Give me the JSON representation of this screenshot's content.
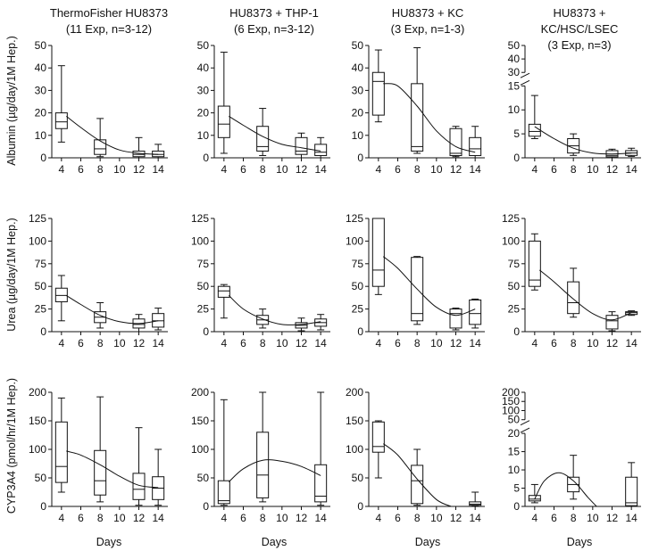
{
  "figure": {
    "column_titles": [
      [
        "ThermoFisher HU8373",
        "(11 Exp, n=3-12)"
      ],
      [
        "HU8373 + THP-1",
        "(6 Exp, n=3-12)"
      ],
      [
        "HU8373 + KC",
        "(3 Exp, n=1-3)"
      ],
      [
        "HU8373 +",
        "KC/HSC/LSEC",
        "(3 Exp, n=3)"
      ]
    ],
    "row_ylabels": [
      "Albumin (µg/day/1M Hep.)",
      "Urea (µg/day/1M Hep.)",
      "CYP3A4 (pmol/hr/1M Hep.)"
    ],
    "xlabel": "Days",
    "x_ticks": [
      4,
      6,
      8,
      10,
      12,
      14
    ]
  },
  "chart_data": [
    {
      "type": "box",
      "id": "albumin-hu8373",
      "row": 0,
      "col": 0,
      "title": "ThermoFisher HU8373 (11 Exp, n=3-12)",
      "ylabel": "Albumin (µg/day/1M Hep.)",
      "xlabel": "",
      "ylim": [
        0,
        50
      ],
      "yticks": [
        0,
        10,
        20,
        30,
        40,
        50
      ],
      "x_ticks": [
        4,
        6,
        8,
        10,
        12,
        14
      ],
      "boxes": [
        {
          "day": 4,
          "min": 7,
          "q1": 13,
          "median": 16,
          "q3": 20,
          "max": 41
        },
        {
          "day": 8,
          "min": 0.5,
          "q1": 1.5,
          "median": 4,
          "q3": 8,
          "max": 17.5
        },
        {
          "day": 12,
          "min": 0,
          "q1": 0.5,
          "median": 1.5,
          "q3": 3,
          "max": 9
        },
        {
          "day": 14,
          "min": 0,
          "q1": 0.5,
          "median": 1.5,
          "q3": 3,
          "max": 6
        }
      ],
      "trend": [
        [
          4.5,
          18.5
        ],
        [
          6,
          13.5
        ],
        [
          8,
          7.5
        ],
        [
          10,
          3.5
        ],
        [
          12,
          2
        ],
        [
          14,
          1.5
        ]
      ]
    },
    {
      "type": "box",
      "id": "albumin-thp1",
      "row": 0,
      "col": 1,
      "title": "HU8373 + THP-1 (6 Exp, n=3-12)",
      "ylabel": "",
      "xlabel": "",
      "ylim": [
        0,
        50
      ],
      "yticks": [
        0,
        10,
        20,
        30,
        40,
        50
      ],
      "x_ticks": [
        4,
        6,
        8,
        10,
        12,
        14
      ],
      "boxes": [
        {
          "day": 4,
          "min": 2,
          "q1": 9,
          "median": 15,
          "q3": 23,
          "max": 47
        },
        {
          "day": 8,
          "min": 1,
          "q1": 3,
          "median": 5,
          "q3": 14,
          "max": 22
        },
        {
          "day": 12,
          "min": 0,
          "q1": 1.5,
          "median": 3,
          "q3": 9,
          "max": 11
        },
        {
          "day": 14,
          "min": 0,
          "q1": 1,
          "median": 2.5,
          "q3": 6,
          "max": 9
        }
      ],
      "trend": [
        [
          4.5,
          18.5
        ],
        [
          6,
          14.5
        ],
        [
          8,
          9.5
        ],
        [
          10,
          6
        ],
        [
          12,
          4.5
        ],
        [
          14,
          3
        ]
      ]
    },
    {
      "type": "box",
      "id": "albumin-kc",
      "row": 0,
      "col": 2,
      "title": "HU8373 + KC (3 Exp, n=1-3)",
      "ylabel": "",
      "xlabel": "",
      "ylim": [
        0,
        50
      ],
      "yticks": [
        0,
        10,
        20,
        30,
        40,
        50
      ],
      "x_ticks": [
        4,
        6,
        8,
        10,
        12,
        14
      ],
      "boxes": [
        {
          "day": 4,
          "min": 16,
          "q1": 19,
          "median": 34,
          "q3": 38,
          "max": 48
        },
        {
          "day": 8,
          "min": 2,
          "q1": 3,
          "median": 5,
          "q3": 33,
          "max": 49
        },
        {
          "day": 12,
          "min": 0.5,
          "q1": 1,
          "median": 2,
          "q3": 13,
          "max": 14
        },
        {
          "day": 14,
          "min": 0,
          "q1": 1,
          "median": 4,
          "q3": 9,
          "max": 14
        }
      ],
      "trend": [
        [
          4.5,
          33
        ],
        [
          6,
          32
        ],
        [
          8,
          23
        ],
        [
          10,
          12
        ],
        [
          12,
          5
        ],
        [
          14,
          2.5
        ]
      ]
    },
    {
      "type": "box",
      "id": "albumin-kc-hsc-lsec",
      "row": 0,
      "col": 3,
      "title": "HU8373 + KC/HSC/LSEC (3 Exp, n=3)",
      "ylabel": "",
      "xlabel": "",
      "ylim": [
        0,
        50
      ],
      "yticks": [
        0,
        5,
        10,
        15,
        30,
        40,
        50
      ],
      "axis_break": [
        15,
        30
      ],
      "x_ticks": [
        4,
        6,
        8,
        10,
        12,
        14
      ],
      "boxes": [
        {
          "day": 4,
          "min": 4,
          "q1": 4.5,
          "median": 5.5,
          "q3": 7,
          "max": 13
        },
        {
          "day": 8,
          "min": 0.5,
          "q1": 1,
          "median": 2.5,
          "q3": 4,
          "max": 5
        },
        {
          "day": 12,
          "min": 0,
          "q1": 0.2,
          "median": 0.5,
          "q3": 1.5,
          "max": 1.8
        },
        {
          "day": 14,
          "min": 0.3,
          "q1": 0.5,
          "median": 1,
          "q3": 1.5,
          "max": 2
        }
      ],
      "trend": [
        [
          4,
          6.5
        ],
        [
          6,
          4
        ],
        [
          8,
          2
        ],
        [
          10,
          1
        ],
        [
          12,
          0.8
        ],
        [
          14,
          1
        ]
      ]
    },
    {
      "type": "box",
      "id": "urea-hu8373",
      "row": 1,
      "col": 0,
      "title": "",
      "ylabel": "Urea (µg/day/1M Hep.)",
      "xlabel": "",
      "ylim": [
        0,
        125
      ],
      "yticks": [
        0,
        25,
        50,
        75,
        100,
        125
      ],
      "x_ticks": [
        4,
        6,
        8,
        10,
        12,
        14
      ],
      "boxes": [
        {
          "day": 4,
          "min": 12,
          "q1": 33,
          "median": 40,
          "q3": 48,
          "max": 62
        },
        {
          "day": 8,
          "min": 4,
          "q1": 10,
          "median": 16,
          "q3": 22,
          "max": 32
        },
        {
          "day": 12,
          "min": 0,
          "q1": 4,
          "median": 8,
          "q3": 14,
          "max": 19
        },
        {
          "day": 14,
          "min": 2,
          "q1": 5,
          "median": 12,
          "q3": 20,
          "max": 26
        }
      ],
      "trend": [
        [
          4.5,
          40
        ],
        [
          6,
          30
        ],
        [
          8,
          18
        ],
        [
          10,
          11
        ],
        [
          12,
          9
        ],
        [
          14,
          12
        ]
      ]
    },
    {
      "type": "box",
      "id": "urea-thp1",
      "row": 1,
      "col": 1,
      "title": "",
      "ylabel": "",
      "xlabel": "",
      "ylim": [
        0,
        125
      ],
      "yticks": [
        0,
        25,
        50,
        75,
        100,
        125
      ],
      "x_ticks": [
        4,
        6,
        8,
        10,
        12,
        14
      ],
      "boxes": [
        {
          "day": 4,
          "min": 15,
          "q1": 38,
          "median": 45,
          "q3": 50,
          "max": 52
        },
        {
          "day": 8,
          "min": 4,
          "q1": 8,
          "median": 13,
          "q3": 18,
          "max": 25
        },
        {
          "day": 12,
          "min": 1,
          "q1": 4,
          "median": 7,
          "q3": 10,
          "max": 15
        },
        {
          "day": 14,
          "min": 2,
          "q1": 6,
          "median": 10,
          "q3": 14,
          "max": 19
        }
      ],
      "trend": [
        [
          4.5,
          40
        ],
        [
          6,
          25
        ],
        [
          8,
          14
        ],
        [
          10,
          8
        ],
        [
          12,
          8
        ],
        [
          14,
          11
        ]
      ]
    },
    {
      "type": "box",
      "id": "urea-kc",
      "row": 1,
      "col": 2,
      "title": "",
      "ylabel": "",
      "xlabel": "",
      "ylim": [
        0,
        125
      ],
      "yticks": [
        0,
        25,
        50,
        75,
        100,
        125
      ],
      "x_ticks": [
        4,
        6,
        8,
        10,
        12,
        14
      ],
      "boxes": [
        {
          "day": 4,
          "min": 41,
          "q1": 50,
          "median": 68,
          "q3": 125,
          "max": 125
        },
        {
          "day": 8,
          "min": 8,
          "q1": 12,
          "median": 20,
          "q3": 82,
          "max": 83
        },
        {
          "day": 12,
          "min": 2,
          "q1": 4,
          "median": 20,
          "q3": 25,
          "max": 26
        },
        {
          "day": 14,
          "min": 4,
          "q1": 8,
          "median": 20,
          "q3": 35,
          "max": 36
        }
      ],
      "trend": [
        [
          4.5,
          83
        ],
        [
          6,
          70
        ],
        [
          8,
          47
        ],
        [
          10,
          27
        ],
        [
          12,
          18
        ],
        [
          14,
          25
        ]
      ]
    },
    {
      "type": "box",
      "id": "urea-kc-hsc-lsec",
      "row": 1,
      "col": 3,
      "title": "",
      "ylabel": "",
      "xlabel": "",
      "ylim": [
        0,
        125
      ],
      "yticks": [
        0,
        25,
        50,
        75,
        100,
        125
      ],
      "x_ticks": [
        4,
        6,
        8,
        10,
        12,
        14
      ],
      "boxes": [
        {
          "day": 4,
          "min": 46,
          "q1": 50,
          "median": 57,
          "q3": 100,
          "max": 108
        },
        {
          "day": 8,
          "min": 16,
          "q1": 20,
          "median": 32,
          "q3": 55,
          "max": 70
        },
        {
          "day": 12,
          "min": 1,
          "q1": 3,
          "median": 12,
          "q3": 18,
          "max": 22
        },
        {
          "day": 14,
          "min": 18,
          "q1": 19,
          "median": 21,
          "q3": 22,
          "max": 23
        }
      ],
      "trend": [
        [
          4.5,
          68
        ],
        [
          6,
          55
        ],
        [
          8,
          36
        ],
        [
          10,
          20
        ],
        [
          12,
          13
        ],
        [
          14,
          21
        ]
      ]
    },
    {
      "type": "box",
      "id": "cyp3a4-hu8373",
      "row": 2,
      "col": 0,
      "title": "",
      "ylabel": "CYP3A4 (pmol/hr/1M Hep.)",
      "xlabel": "Days",
      "ylim": [
        0,
        200
      ],
      "yticks": [
        0,
        50,
        100,
        150,
        200
      ],
      "x_ticks": [
        4,
        6,
        8,
        10,
        12,
        14
      ],
      "boxes": [
        {
          "day": 4,
          "min": 25,
          "q1": 42,
          "median": 70,
          "q3": 148,
          "max": 190
        },
        {
          "day": 8,
          "min": 8,
          "q1": 20,
          "median": 45,
          "q3": 98,
          "max": 192
        },
        {
          "day": 12,
          "min": 2,
          "q1": 12,
          "median": 30,
          "q3": 58,
          "max": 138
        },
        {
          "day": 14,
          "min": 2,
          "q1": 12,
          "median": 32,
          "q3": 52,
          "max": 100
        }
      ],
      "trend": [
        [
          4.5,
          97
        ],
        [
          6,
          90
        ],
        [
          8,
          73
        ],
        [
          10,
          53
        ],
        [
          12,
          37
        ],
        [
          14,
          33
        ]
      ]
    },
    {
      "type": "box",
      "id": "cyp3a4-thp1",
      "row": 2,
      "col": 1,
      "title": "",
      "ylabel": "",
      "xlabel": "Days",
      "ylim": [
        0,
        200
      ],
      "yticks": [
        0,
        50,
        100,
        150,
        200
      ],
      "x_ticks": [
        4,
        6,
        8,
        10,
        12,
        14
      ],
      "boxes": [
        {
          "day": 4,
          "min": 2,
          "q1": 5,
          "median": 10,
          "q3": 45,
          "max": 187
        },
        {
          "day": 8,
          "min": 8,
          "q1": 15,
          "median": 55,
          "q3": 130,
          "max": 200
        },
        {
          "day": 14,
          "min": 2,
          "q1": 8,
          "median": 18,
          "q3": 73,
          "max": 200
        }
      ],
      "trend": [
        [
          4.5,
          43
        ],
        [
          6,
          66
        ],
        [
          8,
          81
        ],
        [
          10,
          79
        ],
        [
          12,
          70
        ],
        [
          14,
          54
        ]
      ]
    },
    {
      "type": "box",
      "id": "cyp3a4-kc",
      "row": 2,
      "col": 2,
      "title": "",
      "ylabel": "",
      "xlabel": "Days",
      "ylim": [
        0,
        200
      ],
      "yticks": [
        0,
        50,
        100,
        150,
        200
      ],
      "x_ticks": [
        4,
        6,
        8,
        10,
        12,
        14
      ],
      "boxes": [
        {
          "day": 4,
          "min": 50,
          "q1": 95,
          "median": 105,
          "q3": 148,
          "max": 150
        },
        {
          "day": 8,
          "min": 2,
          "q1": 5,
          "median": 45,
          "q3": 72,
          "max": 100
        },
        {
          "day": 14,
          "min": 1,
          "q1": 2,
          "median": 4,
          "q3": 8,
          "max": 25
        }
      ],
      "trend": [
        [
          4.5,
          110
        ],
        [
          6,
          90
        ],
        [
          8,
          48
        ],
        [
          10,
          12
        ],
        [
          11.5,
          0
        ]
      ]
    },
    {
      "type": "box",
      "id": "cyp3a4-kc-hsc-lsec",
      "row": 2,
      "col": 3,
      "title": "",
      "ylabel": "",
      "xlabel": "Days",
      "ylim": [
        0,
        200
      ],
      "yticks": [
        0,
        5,
        10,
        15,
        20,
        50,
        100,
        150,
        200
      ],
      "axis_break": [
        20,
        50
      ],
      "x_ticks": [
        4,
        6,
        8,
        10,
        12,
        14
      ],
      "boxes": [
        {
          "day": 4,
          "min": 1,
          "q1": 1.5,
          "median": 2,
          "q3": 3,
          "max": 6
        },
        {
          "day": 8,
          "min": 2,
          "q1": 4,
          "median": 6,
          "q3": 8,
          "max": 14
        },
        {
          "day": 14,
          "min": 0,
          "q1": 0.2,
          "median": 1,
          "q3": 8,
          "max": 12
        }
      ],
      "trend": [
        [
          4,
          2
        ],
        [
          5,
          7
        ],
        [
          6.5,
          9.2
        ],
        [
          8,
          7
        ],
        [
          9.5,
          2.5
        ],
        [
          10.4,
          0
        ]
      ]
    }
  ]
}
